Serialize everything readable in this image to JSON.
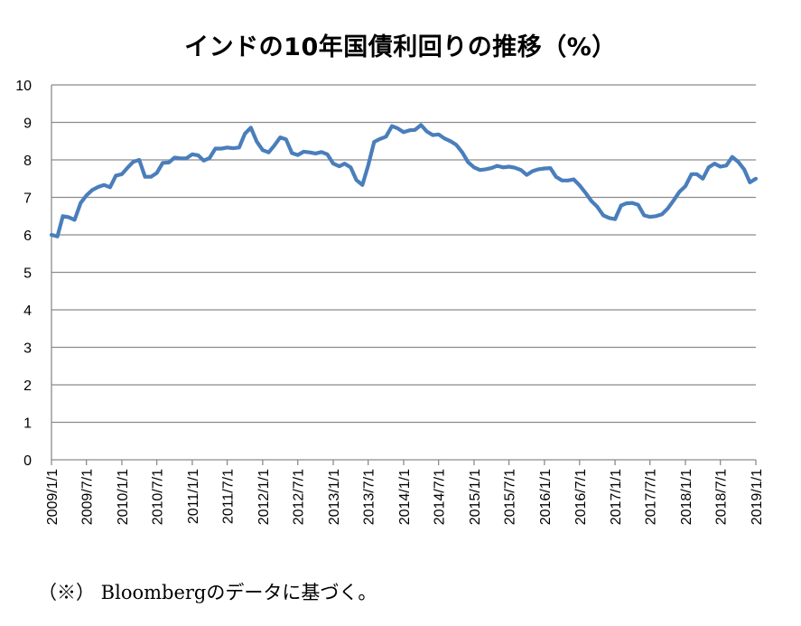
{
  "chart_data": {
    "type": "line",
    "title": "インドの10年国債利回りの推移（%）",
    "footnote": "（※） Bloombergのデータに基づく。",
    "ylim": [
      0,
      10
    ],
    "yticks": [
      "0",
      "1",
      "2",
      "3",
      "4",
      "5",
      "6",
      "7",
      "8",
      "9",
      "10"
    ],
    "grid": true,
    "line_color": "#4a7ebb",
    "x_start": "2009/1/1",
    "x_end": "2019/1/1",
    "xticks": [
      "2009/1/1",
      "2009/7/1",
      "2010/1/1",
      "2010/7/1",
      "2011/1/1",
      "2011/7/1",
      "2012/1/1",
      "2012/7/1",
      "2013/1/1",
      "2013/7/1",
      "2014/1/1",
      "2014/7/1",
      "2015/1/1",
      "2015/7/1",
      "2016/1/1",
      "2016/7/1",
      "2017/1/1",
      "2017/7/1",
      "2018/1/1",
      "2018/7/1",
      "2019/1/1"
    ],
    "series": [
      {
        "values": [
          [
            "2009/1/1",
            6.0
          ],
          [
            "2009/2/1",
            5.96
          ],
          [
            "2009/3/1",
            6.5
          ],
          [
            "2009/4/1",
            6.47
          ],
          [
            "2009/5/1",
            6.4
          ],
          [
            "2009/6/1",
            6.85
          ],
          [
            "2009/7/1",
            7.05
          ],
          [
            "2009/8/1",
            7.2
          ],
          [
            "2009/9/1",
            7.28
          ],
          [
            "2009/10/1",
            7.33
          ],
          [
            "2009/11/1",
            7.27
          ],
          [
            "2009/12/1",
            7.58
          ],
          [
            "2010/1/1",
            7.62
          ],
          [
            "2010/2/1",
            7.8
          ],
          [
            "2010/3/1",
            7.95
          ],
          [
            "2010/4/1",
            8.0
          ],
          [
            "2010/5/1",
            7.55
          ],
          [
            "2010/6/1",
            7.55
          ],
          [
            "2010/7/1",
            7.65
          ],
          [
            "2010/8/1",
            7.92
          ],
          [
            "2010/9/1",
            7.93
          ],
          [
            "2010/10/1",
            8.06
          ],
          [
            "2010/11/1",
            8.04
          ],
          [
            "2010/12/1",
            8.04
          ],
          [
            "2011/1/1",
            8.15
          ],
          [
            "2011/2/1",
            8.12
          ],
          [
            "2011/3/1",
            7.98
          ],
          [
            "2011/4/1",
            8.05
          ],
          [
            "2011/5/1",
            8.3
          ],
          [
            "2011/6/1",
            8.3
          ],
          [
            "2011/7/1",
            8.33
          ],
          [
            "2011/8/1",
            8.31
          ],
          [
            "2011/9/1",
            8.33
          ],
          [
            "2011/10/1",
            8.7
          ],
          [
            "2011/11/1",
            8.86
          ],
          [
            "2011/12/1",
            8.49
          ],
          [
            "2012/1/1",
            8.26
          ],
          [
            "2012/2/1",
            8.2
          ],
          [
            "2012/3/1",
            8.38
          ],
          [
            "2012/4/1",
            8.6
          ],
          [
            "2012/5/1",
            8.55
          ],
          [
            "2012/6/1",
            8.18
          ],
          [
            "2012/7/1",
            8.13
          ],
          [
            "2012/8/1",
            8.22
          ],
          [
            "2012/9/1",
            8.2
          ],
          [
            "2012/10/1",
            8.17
          ],
          [
            "2012/11/1",
            8.21
          ],
          [
            "2012/12/1",
            8.15
          ],
          [
            "2013/1/1",
            7.9
          ],
          [
            "2013/2/1",
            7.83
          ],
          [
            "2013/3/1",
            7.9
          ],
          [
            "2013/4/1",
            7.8
          ],
          [
            "2013/5/1",
            7.46
          ],
          [
            "2013/6/1",
            7.33
          ],
          [
            "2013/7/1",
            7.85
          ],
          [
            "2013/8/1",
            8.48
          ],
          [
            "2013/9/1",
            8.56
          ],
          [
            "2013/10/1",
            8.62
          ],
          [
            "2013/11/1",
            8.9
          ],
          [
            "2013/12/1",
            8.84
          ],
          [
            "2014/1/1",
            8.74
          ],
          [
            "2014/2/1",
            8.79
          ],
          [
            "2014/3/1",
            8.8
          ],
          [
            "2014/4/1",
            8.93
          ],
          [
            "2014/5/1",
            8.76
          ],
          [
            "2014/6/1",
            8.66
          ],
          [
            "2014/7/1",
            8.68
          ],
          [
            "2014/8/1",
            8.57
          ],
          [
            "2014/9/1",
            8.5
          ],
          [
            "2014/10/1",
            8.4
          ],
          [
            "2014/11/1",
            8.2
          ],
          [
            "2014/12/1",
            7.94
          ],
          [
            "2015/1/1",
            7.8
          ],
          [
            "2015/2/1",
            7.73
          ],
          [
            "2015/3/1",
            7.75
          ],
          [
            "2015/4/1",
            7.78
          ],
          [
            "2015/5/1",
            7.84
          ],
          [
            "2015/6/1",
            7.8
          ],
          [
            "2015/7/1",
            7.82
          ],
          [
            "2015/8/1",
            7.79
          ],
          [
            "2015/9/1",
            7.73
          ],
          [
            "2015/10/1",
            7.6
          ],
          [
            "2015/11/1",
            7.7
          ],
          [
            "2015/12/1",
            7.75
          ],
          [
            "2016/1/1",
            7.77
          ],
          [
            "2016/2/1",
            7.78
          ],
          [
            "2016/3/1",
            7.55
          ],
          [
            "2016/4/1",
            7.45
          ],
          [
            "2016/5/1",
            7.45
          ],
          [
            "2016/6/1",
            7.48
          ],
          [
            "2016/7/1",
            7.32
          ],
          [
            "2016/8/1",
            7.12
          ],
          [
            "2016/9/1",
            6.9
          ],
          [
            "2016/10/1",
            6.75
          ],
          [
            "2016/11/1",
            6.52
          ],
          [
            "2016/12/1",
            6.45
          ],
          [
            "2017/1/1",
            6.42
          ],
          [
            "2017/2/1",
            6.78
          ],
          [
            "2017/3/1",
            6.84
          ],
          [
            "2017/4/1",
            6.85
          ],
          [
            "2017/5/1",
            6.8
          ],
          [
            "2017/6/1",
            6.52
          ],
          [
            "2017/7/1",
            6.48
          ],
          [
            "2017/8/1",
            6.5
          ],
          [
            "2017/9/1",
            6.55
          ],
          [
            "2017/10/1",
            6.7
          ],
          [
            "2017/11/1",
            6.92
          ],
          [
            "2017/12/1",
            7.15
          ],
          [
            "2018/1/1",
            7.3
          ],
          [
            "2018/2/1",
            7.62
          ],
          [
            "2018/3/1",
            7.62
          ],
          [
            "2018/4/1",
            7.5
          ],
          [
            "2018/5/1",
            7.8
          ],
          [
            "2018/6/1",
            7.9
          ],
          [
            "2018/7/1",
            7.82
          ],
          [
            "2018/8/1",
            7.85
          ],
          [
            "2018/9/1",
            8.08
          ],
          [
            "2018/10/1",
            7.95
          ],
          [
            "2018/11/1",
            7.75
          ],
          [
            "2018/12/1",
            7.4
          ],
          [
            "2019/1/1",
            7.5
          ]
        ]
      }
    ]
  }
}
